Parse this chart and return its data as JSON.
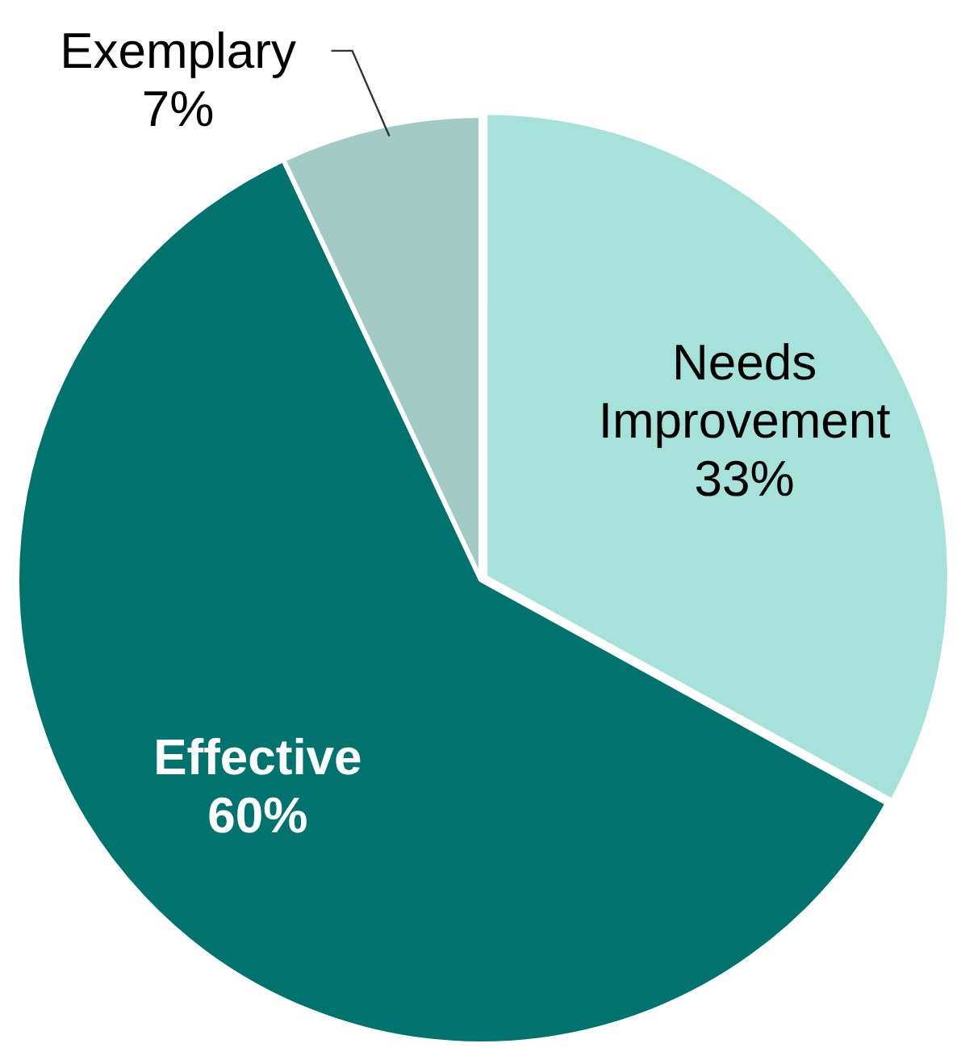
{
  "chart_data": {
    "type": "pie",
    "categories": [
      "Needs Improvement",
      "Effective",
      "Exemplary"
    ],
    "values": [
      33,
      60,
      7
    ],
    "value_labels": [
      "33%",
      "60%",
      "7%"
    ],
    "colors": [
      "#a6e1da",
      "#00736e",
      "#a3cbc5"
    ],
    "legend": false
  }
}
